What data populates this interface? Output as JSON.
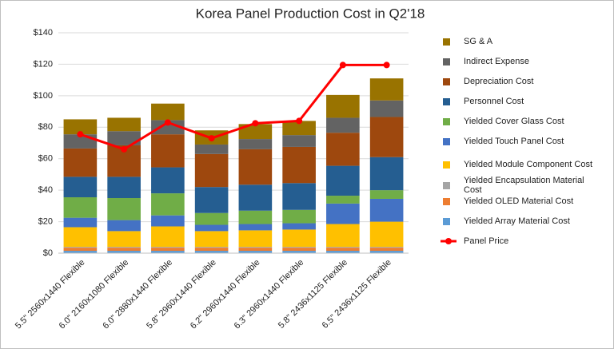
{
  "chart_data": {
    "type": "bar",
    "stacked": true,
    "title": "Korea  Panel Production Cost in Q2'18",
    "categories": [
      "5.5\" 2560x1440 Flexible",
      "6.0\" 2160x1080 Flexible",
      "6.0\" 2880x1440 Flexible",
      "5.8\" 2960x1440 Flexible",
      "6.2\" 2960x1440 Flexible",
      "6.3\" 2960x1440 Flexible",
      "5.8\" 2436x1125 Flexible",
      "6.5\" 2436x1125 Flexible"
    ],
    "series": [
      {
        "name": "Yielded Array Material Cost",
        "color": "#5b9bd5",
        "values": [
          1.5,
          1.5,
          1.5,
          1.5,
          1.5,
          1.5,
          1.5,
          1.5
        ]
      },
      {
        "name": "Yielded OLED Material Cost",
        "color": "#ed7d31",
        "values": [
          2,
          2,
          2,
          2,
          2,
          2,
          2,
          2
        ]
      },
      {
        "name": "Yielded Encapsulation Material Cost",
        "color": "#a5a5a5",
        "values": [
          0.5,
          0.5,
          0.5,
          0.5,
          0.5,
          0.5,
          0.5,
          0.5
        ]
      },
      {
        "name": "Yielded Module Component Cost",
        "color": "#ffc000",
        "values": [
          12.5,
          10,
          13,
          10,
          10.5,
          11,
          14.5,
          16
        ]
      },
      {
        "name": "Yielded Touch Panel Cost",
        "color": "#4472c4",
        "values": [
          6,
          7,
          7,
          4,
          4,
          4,
          13,
          14.5
        ]
      },
      {
        "name": "Yielded Cover Glass Cost",
        "color": "#70ad47",
        "values": [
          13,
          14,
          14,
          7.5,
          8.5,
          8.5,
          5,
          5.5
        ]
      },
      {
        "name": "Personnel Cost",
        "color": "#255e91",
        "values": [
          13,
          13.5,
          16.5,
          16.5,
          16.5,
          17,
          19,
          21
        ]
      },
      {
        "name": "Depreciation Cost",
        "color": "#9e480e",
        "values": [
          18,
          20,
          21,
          21,
          22.5,
          23,
          21,
          25.5
        ]
      },
      {
        "name": "Indirect Expense",
        "color": "#636363",
        "values": [
          9,
          9,
          9,
          6,
          6.5,
          7.5,
          9.5,
          10.5
        ]
      },
      {
        "name": "SG & A",
        "color": "#997300",
        "values": [
          9.5,
          8.5,
          10.5,
          9,
          9.5,
          9,
          14.5,
          14
        ]
      },
      {
        "name": "Panel Price",
        "color": "#ff0000",
        "type": "line",
        "values": [
          75.5,
          66,
          83,
          73,
          82.5,
          84,
          119.5,
          119.5
        ]
      }
    ],
    "ylim": [
      0,
      140
    ],
    "yticks": [
      {
        "value": 0,
        "label": "$0"
      },
      {
        "value": 20,
        "label": "$20"
      },
      {
        "value": 40,
        "label": "$40"
      },
      {
        "value": 60,
        "label": "$60"
      },
      {
        "value": 80,
        "label": "$80"
      },
      {
        "value": 100,
        "label": "$100"
      },
      {
        "value": 120,
        "label": "$120"
      },
      {
        "value": 140,
        "label": "$140"
      }
    ],
    "grid": true,
    "legend": "right"
  }
}
